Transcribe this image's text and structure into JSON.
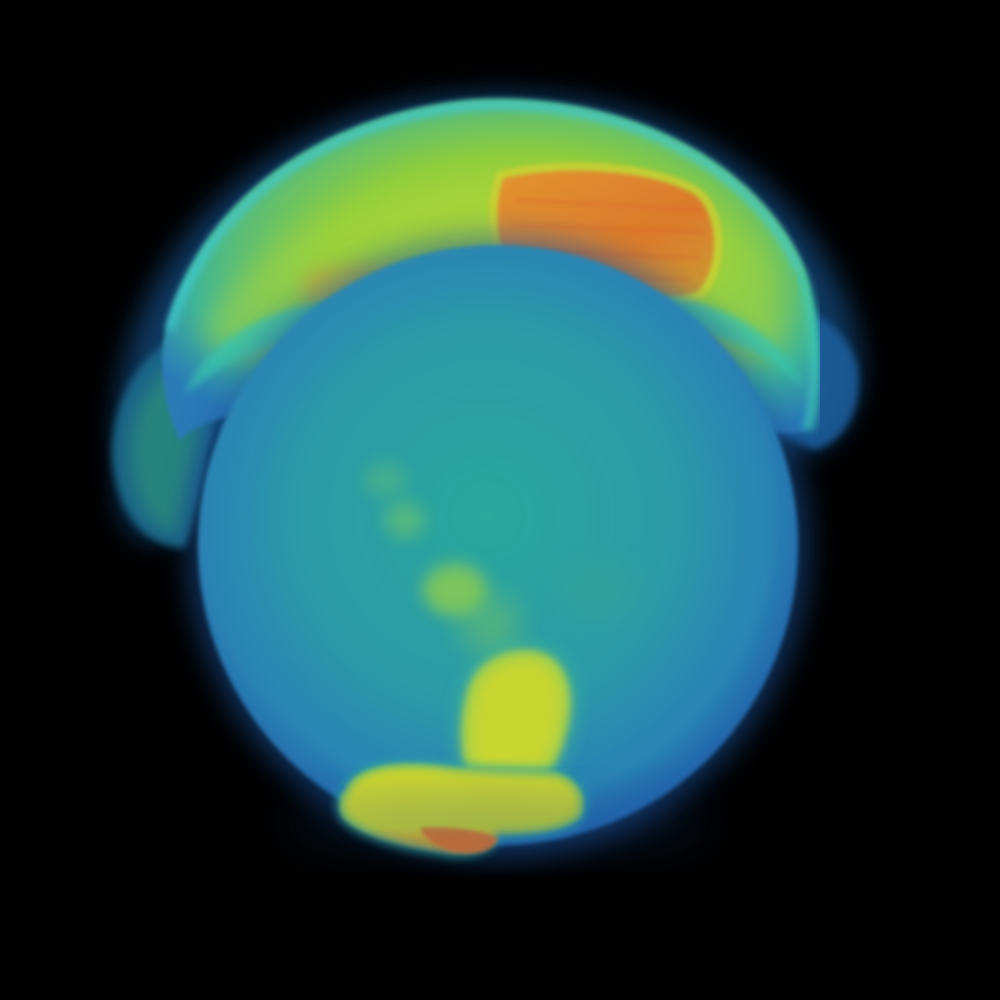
{
  "scene": {
    "subject": "volume-rendered-bubble",
    "colors": {
      "background": "#000000",
      "deep_blue": "#1f5fae",
      "blue": "#2778b8",
      "teal": "#2aa5a0",
      "cyan": "#38c8c8",
      "green": "#6fc84a",
      "yellow_green": "#b8d832",
      "yellow": "#d8dc2a",
      "orange": "#e08a2a",
      "red_orange": "#d8602a"
    }
  }
}
